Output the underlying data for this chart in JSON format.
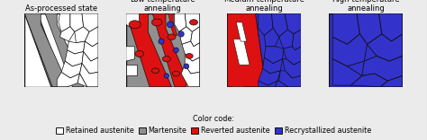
{
  "panel_titles": [
    "As-processed state",
    "Low-temperature\nannealing",
    "Medium-temperature\nannealing",
    "High-temperature\nannealing"
  ],
  "color_white": "#FFFFFF",
  "color_gray": "#909090",
  "color_red": "#DD1111",
  "color_blue": "#3333CC",
  "color_outline": "#111111",
  "color_bg": "#EBEBEB",
  "legend_labels": [
    "Retained austenite",
    "Martensite",
    "Reverted austenite",
    "Recrystallized austenite"
  ],
  "legend_colors": [
    "#FFFFFF",
    "#909090",
    "#DD1111",
    "#3333CC"
  ],
  "title_fontsize": 6.0,
  "legend_fontsize": 5.8
}
